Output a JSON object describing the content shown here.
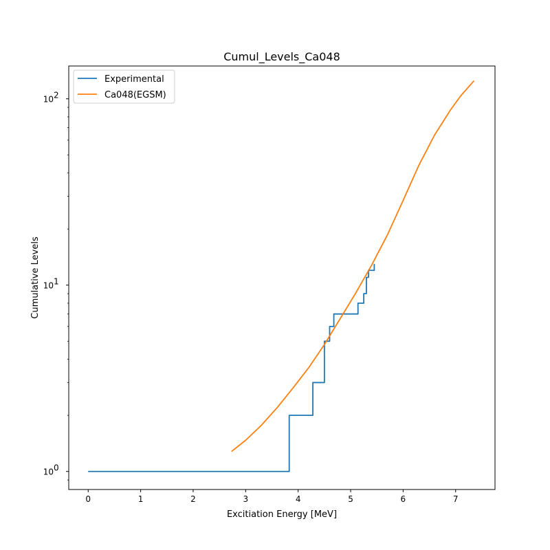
{
  "chart_data": {
    "type": "line",
    "title": "Cumul_Levels_Ca048",
    "xlabel": "Excitiation Energy [MeV]",
    "ylabel": "Cumulative Levels",
    "xlim": [
      -0.37,
      7.75
    ],
    "ylim": [
      0.8,
      150
    ],
    "yscale": "log",
    "xticks": [
      0,
      1,
      2,
      3,
      4,
      5,
      6,
      7
    ],
    "xtick_labels": [
      "0",
      "1",
      "2",
      "3",
      "4",
      "5",
      "6",
      "7"
    ],
    "yticks": [
      1,
      10,
      100
    ],
    "ytick_labels": [
      "10",
      "10",
      "10"
    ],
    "ytick_exponents": [
      "0",
      "1",
      "2"
    ],
    "grid": false,
    "legend": "top-left",
    "series": [
      {
        "name": "Experimental",
        "color": "#1f77b4",
        "style": "step-post",
        "x": [
          0.0,
          3.83,
          4.28,
          4.5,
          4.6,
          4.68,
          5.14,
          5.25,
          5.3,
          5.34,
          5.4,
          5.45
        ],
        "y": [
          1,
          2,
          3,
          5,
          6,
          7,
          8,
          9,
          11,
          12,
          12,
          13
        ]
      },
      {
        "name": "Ca048(EGSM)",
        "color": "#ff7f0e",
        "style": "line",
        "x": [
          2.73,
          3.0,
          3.3,
          3.6,
          3.9,
          4.2,
          4.5,
          4.8,
          5.1,
          5.4,
          5.7,
          6.0,
          6.3,
          6.6,
          6.9,
          7.1,
          7.35
        ],
        "y": [
          1.28,
          1.47,
          1.77,
          2.2,
          2.8,
          3.6,
          4.8,
          6.6,
          9.1,
          12.8,
          18.6,
          28.5,
          44.0,
          64.0,
          87.0,
          104.0,
          125.0
        ]
      }
    ]
  }
}
